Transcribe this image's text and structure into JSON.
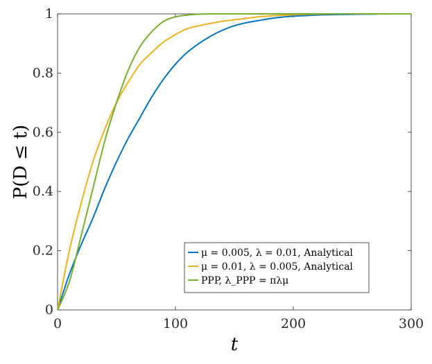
{
  "chart_data": {
    "type": "line",
    "title": "",
    "xlabel": "t",
    "ylabel": "P(D ≤ t)",
    "xlim": [
      0,
      300
    ],
    "ylim": [
      0,
      1
    ],
    "xticks": [
      0,
      100,
      200,
      300
    ],
    "xtick_labels": [
      "0",
      "100",
      "200",
      "300"
    ],
    "yticks": [
      0,
      0.2,
      0.4,
      0.6,
      0.8,
      1
    ],
    "ytick_labels": [
      "0",
      "0.2",
      "0.4",
      "0.6",
      "0.8",
      "1"
    ],
    "legend_position": "bottom-right",
    "series": [
      {
        "name": "μ = 0.005, λ = 0.01, Analytical",
        "color": "#0072BD",
        "x": [
          0,
          10,
          20,
          30,
          40,
          50,
          60,
          70,
          80,
          90,
          100,
          110,
          120,
          130,
          140,
          150,
          160,
          170,
          180,
          190,
          200,
          220,
          240,
          260,
          280,
          300
        ],
        "y": [
          0,
          0.12,
          0.22,
          0.31,
          0.41,
          0.5,
          0.58,
          0.65,
          0.72,
          0.78,
          0.83,
          0.87,
          0.9,
          0.925,
          0.945,
          0.96,
          0.97,
          0.977,
          0.984,
          0.989,
          0.992,
          0.996,
          0.998,
          0.999,
          1.0,
          1.0
        ]
      },
      {
        "name": "μ = 0.01, λ = 0.005, Analytical",
        "color": "#EDB120",
        "x": [
          0,
          10,
          20,
          30,
          40,
          50,
          60,
          70,
          80,
          90,
          100,
          110,
          120,
          130,
          140,
          150,
          160,
          170,
          180,
          190,
          200,
          220,
          240,
          260,
          280,
          300
        ],
        "y": [
          0,
          0.2,
          0.36,
          0.5,
          0.61,
          0.7,
          0.77,
          0.83,
          0.87,
          0.905,
          0.93,
          0.95,
          0.96,
          0.968,
          0.975,
          0.98,
          0.985,
          0.99,
          0.993,
          0.995,
          0.997,
          0.999,
          1.0,
          1.0,
          1.0,
          1.0
        ]
      },
      {
        "name": "PPP, λ_PPP = πλμ",
        "color": "#77AC30",
        "x": [
          0,
          10,
          20,
          30,
          40,
          50,
          60,
          70,
          80,
          90,
          100,
          110,
          120,
          130,
          140,
          150,
          160,
          180,
          200,
          250,
          300
        ],
        "y": [
          0,
          0.095,
          0.25,
          0.41,
          0.57,
          0.7,
          0.81,
          0.89,
          0.94,
          0.975,
          0.99,
          0.996,
          0.999,
          1.0,
          1.0,
          1.0,
          1.0,
          1.0,
          1.0,
          1.0,
          1.0
        ]
      }
    ]
  }
}
